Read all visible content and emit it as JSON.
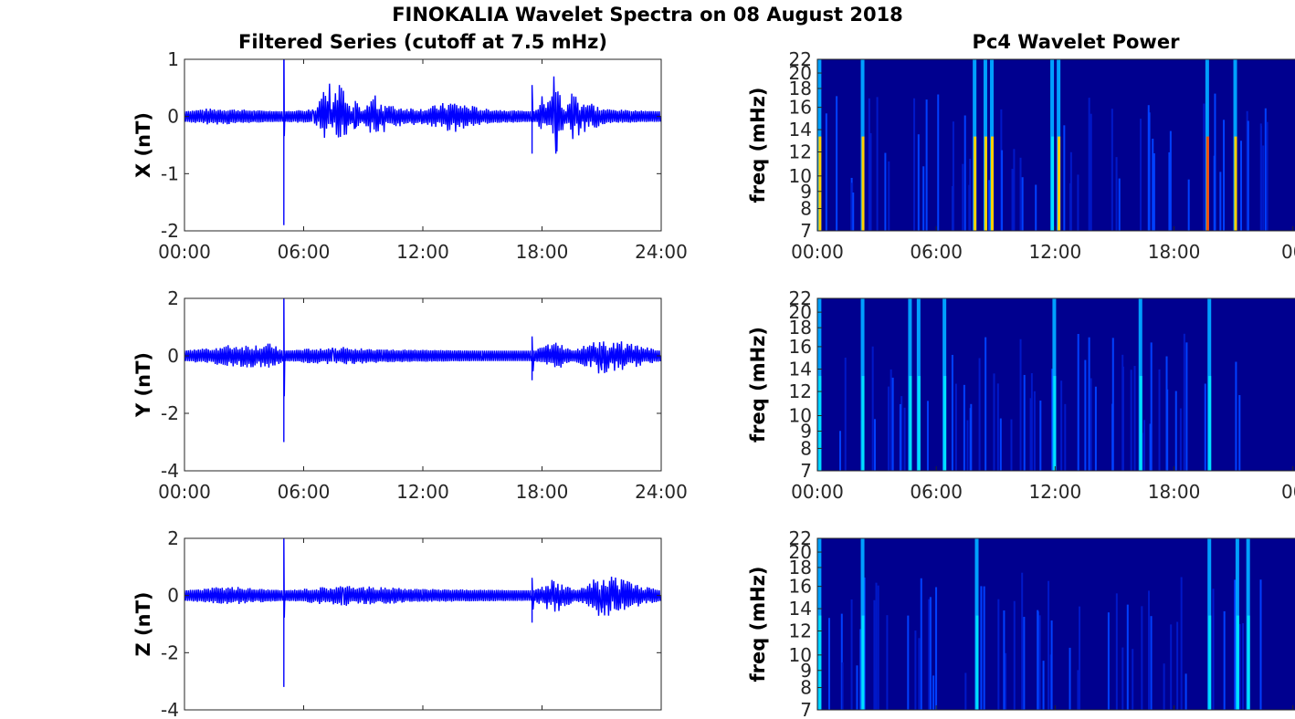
{
  "figure": {
    "title": "FINOKALIA Wavelet Spectra on 08 August 2018",
    "left_title": "Filtered Series (cutoff at 7.5 mHz)",
    "right_title": "Pc4 Wavelet Power"
  },
  "colors": {
    "series": "#0000ff",
    "bg": "#00008f",
    "axis": "#262626"
  },
  "chart_data": [
    {
      "type": "line",
      "panel": "X",
      "ylabel": "X (nT)",
      "ylim": [
        -2,
        1
      ],
      "yticks": [
        1,
        0,
        -1,
        -2
      ],
      "xlim": [
        0,
        24
      ],
      "xticks": [
        "00:00",
        "06:00",
        "12:00",
        "18:00",
        "24:00"
      ],
      "series": [
        {
          "values": [
            [
              0,
              0.0
            ],
            [
              1.0,
              0.05
            ],
            [
              2.2,
              0.05
            ],
            [
              3.5,
              0.02
            ],
            [
              5.0,
              0.0
            ],
            [
              5.0,
              -1.9
            ],
            [
              5.05,
              0.0
            ],
            [
              6.5,
              0.05
            ],
            [
              7.3,
              0.55
            ],
            [
              7.9,
              0.5
            ],
            [
              8.6,
              -0.2
            ],
            [
              9.5,
              0.3
            ],
            [
              10.5,
              0.1
            ],
            [
              12.0,
              0.05
            ],
            [
              13.5,
              0.2
            ],
            [
              15.0,
              0.05
            ],
            [
              16.5,
              0.02
            ],
            [
              17.5,
              0.0
            ],
            [
              17.5,
              -0.65
            ],
            [
              17.6,
              0.0
            ],
            [
              18.6,
              0.7
            ],
            [
              18.7,
              -0.65
            ],
            [
              19.5,
              0.4
            ],
            [
              21.0,
              0.05
            ],
            [
              22.5,
              0.02
            ],
            [
              24.0,
              0.0
            ]
          ]
        }
      ]
    },
    {
      "type": "line",
      "panel": "Y",
      "ylabel": "Y (nT)",
      "ylim": [
        -4,
        2
      ],
      "yticks": [
        2,
        0,
        -2,
        -4
      ],
      "xlim": [
        0,
        24
      ],
      "xticks": [
        "00:00",
        "06:00",
        "12:00",
        "18:00",
        "24:00"
      ],
      "series": [
        {
          "values": [
            [
              0,
              0.0
            ],
            [
              2.2,
              0.2
            ],
            [
              4.5,
              0.25
            ],
            [
              5.0,
              0.0
            ],
            [
              5.0,
              -3.0
            ],
            [
              5.05,
              0.0
            ],
            [
              7.5,
              0.15
            ],
            [
              10.0,
              0.05
            ],
            [
              15.0,
              0.0
            ],
            [
              17.5,
              0.0
            ],
            [
              17.5,
              -0.85
            ],
            [
              17.6,
              0.0
            ],
            [
              18.6,
              0.35
            ],
            [
              21.0,
              -0.5
            ],
            [
              24.0,
              0.0
            ]
          ]
        }
      ]
    },
    {
      "type": "line",
      "panel": "Z",
      "ylabel": "Z (nT)",
      "ylim": [
        -4,
        2
      ],
      "yticks": [
        2,
        0,
        -2,
        -4
      ],
      "xlim": [
        0,
        24
      ],
      "xticks": [],
      "series": [
        {
          "values": [
            [
              0,
              0.0
            ],
            [
              2.2,
              0.15
            ],
            [
              5.0,
              0.0
            ],
            [
              5.0,
              -3.2
            ],
            [
              5.05,
              0.0
            ],
            [
              8.0,
              0.2
            ],
            [
              12.0,
              0.05
            ],
            [
              17.5,
              0.0
            ],
            [
              17.5,
              -0.95
            ],
            [
              17.6,
              0.0
            ],
            [
              18.6,
              0.5
            ],
            [
              21.0,
              -0.6
            ],
            [
              24.0,
              0.0
            ]
          ]
        }
      ]
    },
    {
      "type": "heatmap",
      "panel": "X-power",
      "ylabel": "freq (mHz)",
      "yticks": [
        22,
        20,
        18,
        16,
        14,
        12,
        10,
        9,
        8,
        7
      ],
      "xlim": [
        0,
        24
      ],
      "xticks": [
        "00:00",
        "06:00",
        "12:00",
        "18:00",
        "00"
      ],
      "series": [
        {
          "values": [
            [
              0.1,
              "#ffd000"
            ],
            [
              2.1,
              "#ffd000"
            ],
            [
              7.3,
              "#ffd000"
            ],
            [
              7.8,
              "#ffd000"
            ],
            [
              8.1,
              "#ffd000"
            ],
            [
              10.9,
              "#00e0ff"
            ],
            [
              11.2,
              "#ffd000"
            ],
            [
              18.1,
              "#ff5000"
            ],
            [
              19.4,
              "#ffd000"
            ]
          ]
        }
      ]
    },
    {
      "type": "heatmap",
      "panel": "Y-power",
      "ylabel": "freq (mHz)",
      "yticks": [
        22,
        20,
        18,
        16,
        14,
        12,
        10,
        9,
        8,
        7
      ],
      "xlim": [
        0,
        24
      ],
      "xticks": [
        "00:00",
        "06:00",
        "12:00",
        "18:00",
        "00"
      ],
      "series": [
        {
          "values": [
            [
              0.1,
              "#00e0ff"
            ],
            [
              2.1,
              "#00e0ff"
            ],
            [
              4.3,
              "#00e0ff"
            ],
            [
              4.7,
              "#00e0ff"
            ],
            [
              5.9,
              "#00e0ff"
            ],
            [
              11.0,
              "#00e0ff"
            ],
            [
              15.0,
              "#00e0ff"
            ],
            [
              18.2,
              "#00e0ff"
            ]
          ]
        }
      ]
    },
    {
      "type": "heatmap",
      "panel": "Z-power",
      "ylabel": "freq (mHz)",
      "yticks": [
        22,
        20,
        18,
        16,
        14,
        12,
        10,
        9,
        8,
        7
      ],
      "xlim": [
        0,
        24
      ],
      "xticks": [],
      "series": [
        {
          "values": [
            [
              0.1,
              "#00e0ff"
            ],
            [
              2.1,
              "#00e0ff"
            ],
            [
              7.4,
              "#00e0ff"
            ],
            [
              18.2,
              "#00e0ff"
            ],
            [
              19.5,
              "#00e0ff"
            ],
            [
              20.0,
              "#00e0ff"
            ]
          ]
        }
      ]
    }
  ]
}
